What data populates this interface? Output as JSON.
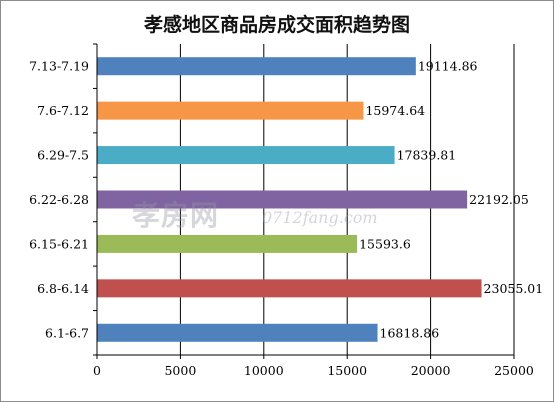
{
  "chart_data": {
    "type": "bar",
    "orientation": "horizontal",
    "title": "孝感地区商品房成交面积趋势图",
    "categories": [
      "7.13-7.19",
      "7.6-7.12",
      "6.29-7.5",
      "6.22-6.28",
      "6.15-6.21",
      "6.8-6.14",
      "6.1-6.7"
    ],
    "values": [
      19114.86,
      15974.64,
      17839.81,
      22192.05,
      15593.6,
      23055.01,
      16818.86
    ],
    "value_labels": [
      "19114.86",
      "15974.64",
      "17839.81",
      "22192.05",
      "15593.6",
      "23055.01",
      "16818.86"
    ],
    "colors": [
      "#4f81bd",
      "#f79646",
      "#4bacc6",
      "#8064a2",
      "#9bbb59",
      "#c0504d",
      "#4f81bd"
    ],
    "xlim": [
      0,
      25000
    ],
    "xticks": [
      0,
      5000,
      10000,
      15000,
      20000,
      25000
    ],
    "xlabel": "",
    "ylabel": "",
    "grid": true,
    "legend": "none"
  },
  "watermark": {
    "text": "孝房网",
    "url": "0712fang.com"
  }
}
